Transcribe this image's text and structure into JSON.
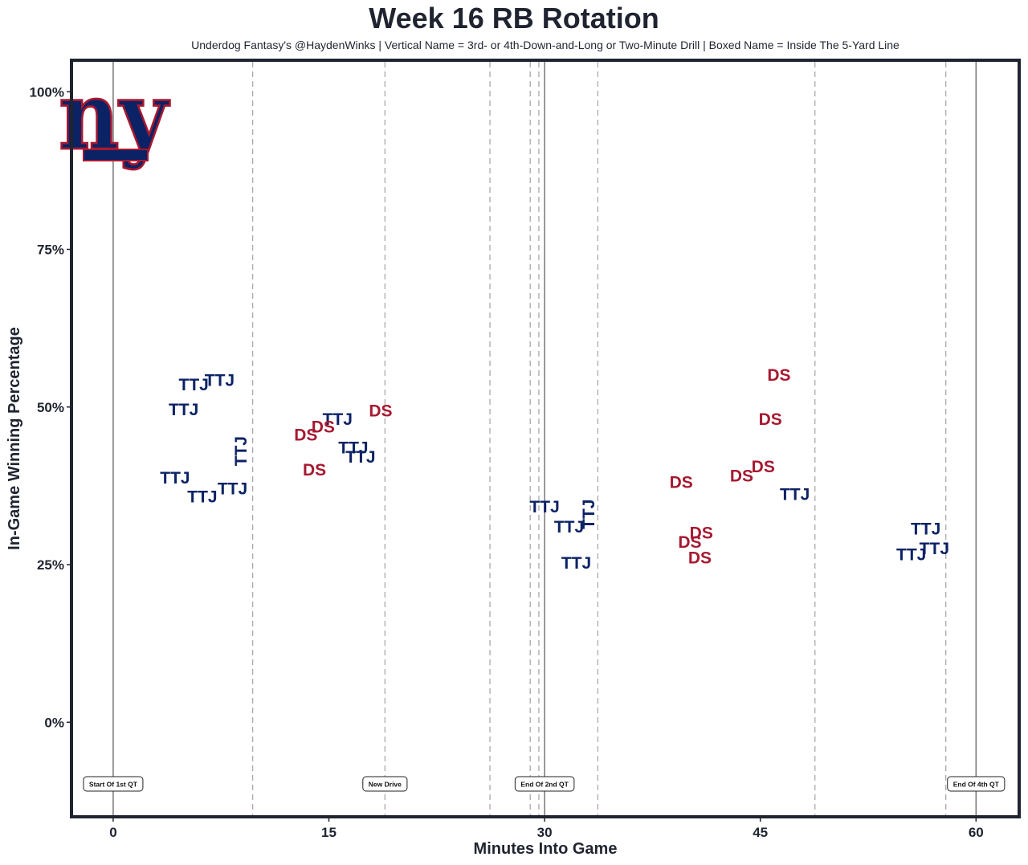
{
  "chart_data": {
    "type": "scatter",
    "title": "Week 16 RB Rotation",
    "subtitle": "Underdog Fantasy's @HaydenWinks | Vertical Name = 3rd- or 4th-Down-and-Long or Two-Minute Drill | Boxed Name = Inside The 5-Yard Line",
    "xlabel": "Minutes Into Game",
    "ylabel": "In-Game Winning Percentage",
    "xlim": [
      -2.9,
      63.0
    ],
    "ylim": [
      -15,
      105
    ],
    "xticks": [
      0,
      15,
      30,
      45,
      60
    ],
    "xtick_labels": [
      "0",
      "15",
      "30",
      "45",
      "60"
    ],
    "yticks": [
      0,
      25,
      50,
      75,
      100
    ],
    "ytick_labels": [
      "0%",
      "25%",
      "50%",
      "75%",
      "100%"
    ],
    "colors": {
      "TTJ": "#0b2265",
      "DS": "#a71930",
      "frame": "#1f2430"
    },
    "logo_text": "ny",
    "quarter_lines": [
      0,
      30,
      60
    ],
    "drive_lines": [
      9.7,
      18.9,
      26.2,
      29.0,
      29.6,
      33.7,
      48.8,
      57.9
    ],
    "annotations": [
      {
        "x": 0,
        "label": "Start Of 1st QT"
      },
      {
        "x": 18.9,
        "label": "New Drive"
      },
      {
        "x": 30,
        "label": "End Of 2nd QT"
      },
      {
        "x": 60,
        "label": "End Of 4th QT"
      }
    ],
    "series": [
      {
        "name": "TTJ",
        "points": [
          {
            "x": 5.6,
            "y": 53.5,
            "label": "TTJ"
          },
          {
            "x": 7.4,
            "y": 54.2,
            "label": "TTJ"
          },
          {
            "x": 4.9,
            "y": 49.5,
            "label": "TTJ"
          },
          {
            "x": 8.9,
            "y": 43.0,
            "label": "TTJ",
            "vertical": true
          },
          {
            "x": 4.3,
            "y": 38.7,
            "label": "TTJ"
          },
          {
            "x": 6.2,
            "y": 35.7,
            "label": "TTJ"
          },
          {
            "x": 8.3,
            "y": 37.0,
            "label": "TTJ"
          },
          {
            "x": 15.6,
            "y": 48.0,
            "label": "TTJ"
          },
          {
            "x": 16.7,
            "y": 43.5,
            "label": "TTJ"
          },
          {
            "x": 17.2,
            "y": 42.0,
            "label": "TTJ"
          },
          {
            "x": 30.0,
            "y": 34.1,
            "label": "TTJ"
          },
          {
            "x": 31.7,
            "y": 30.9,
            "label": "TTJ"
          },
          {
            "x": 33.1,
            "y": 33.0,
            "label": "TTJ",
            "vertical": true
          },
          {
            "x": 32.2,
            "y": 25.2,
            "label": "TTJ"
          },
          {
            "x": 47.4,
            "y": 36.1,
            "label": "TTJ"
          },
          {
            "x": 56.5,
            "y": 30.6,
            "label": "TTJ"
          },
          {
            "x": 57.1,
            "y": 27.5,
            "label": "TTJ"
          },
          {
            "x": 55.5,
            "y": 26.5,
            "label": "TTJ"
          }
        ]
      },
      {
        "name": "DS",
        "points": [
          {
            "x": 13.4,
            "y": 45.5,
            "label": "DS"
          },
          {
            "x": 14.6,
            "y": 46.8,
            "label": "DS"
          },
          {
            "x": 18.6,
            "y": 49.3,
            "label": "DS"
          },
          {
            "x": 14.0,
            "y": 40.0,
            "label": "DS"
          },
          {
            "x": 46.3,
            "y": 55.0,
            "label": "DS"
          },
          {
            "x": 45.7,
            "y": 48.0,
            "label": "DS"
          },
          {
            "x": 45.2,
            "y": 40.5,
            "label": "DS"
          },
          {
            "x": 43.7,
            "y": 39.0,
            "label": "DS"
          },
          {
            "x": 39.5,
            "y": 38.0,
            "label": "DS"
          },
          {
            "x": 40.9,
            "y": 30.0,
            "label": "DS"
          },
          {
            "x": 40.1,
            "y": 28.5,
            "label": "DS"
          },
          {
            "x": 40.8,
            "y": 26.0,
            "label": "DS"
          }
        ]
      }
    ]
  }
}
